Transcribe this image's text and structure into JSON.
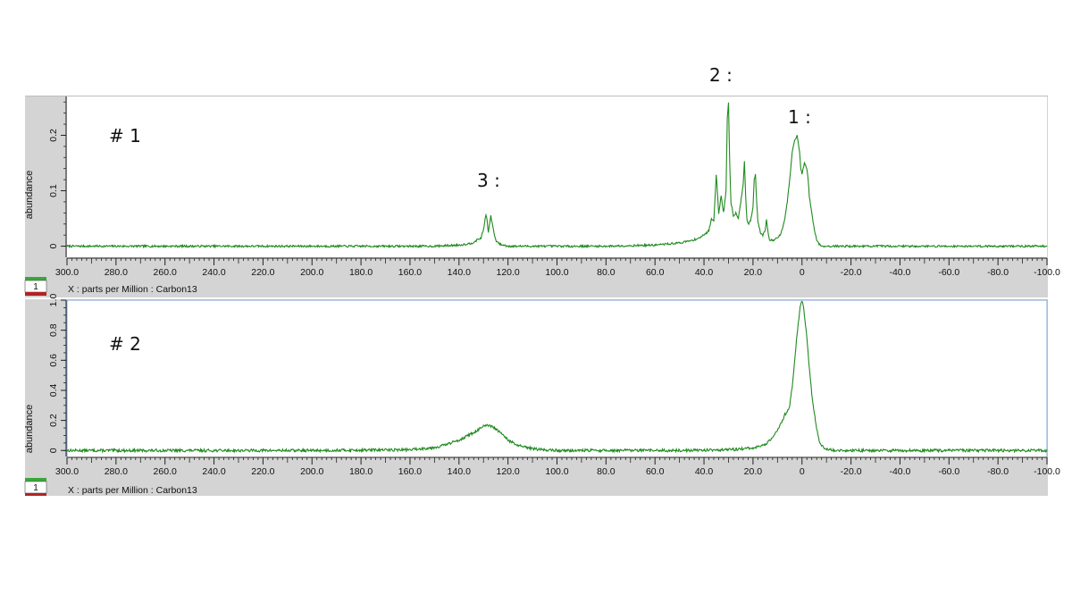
{
  "annotations": {
    "peak1": "1 :",
    "peak2": "2 :",
    "peak3": "3 :"
  },
  "status": {
    "badge": "1"
  },
  "colors": {
    "trace": "#1f8a1f",
    "panel_bg": "#d4d4d4",
    "plot_bg": "#ffffff",
    "badge_top": "#3aa63a",
    "badge_bottom": "#b22222"
  },
  "chart_data": [
    {
      "type": "line",
      "panel_label": "# 1",
      "ylabel": "abundance",
      "xlabel": "X : parts per Million : Carbon13",
      "xlim": [
        300,
        -100
      ],
      "x_reversed": true,
      "ylim": [
        -0.02,
        0.27
      ],
      "y_ticks": [
        "0",
        "0.1",
        "0.2"
      ],
      "x_ticks": [
        "300.0",
        "280.0",
        "260.0",
        "240.0",
        "220.0",
        "200.0",
        "180.0",
        "160.0",
        "140.0",
        "120.0",
        "100.0",
        "80.0",
        "60.0",
        "40.0",
        "20.0",
        "0",
        "-20.0",
        "-40.0",
        "-60.0",
        "-80.0",
        "-100.0"
      ],
      "series": [
        {
          "x": [
            300,
            200,
            150,
            140,
            135,
            131,
            130,
            129,
            128.5,
            128,
            127,
            126,
            125,
            123,
            120,
            110,
            100,
            80,
            60,
            50,
            45,
            42,
            40,
            38,
            37,
            36,
            35,
            34,
            33,
            32,
            31,
            30.5,
            30,
            29.5,
            29,
            28,
            27,
            26,
            25,
            24,
            23.5,
            23,
            22.5,
            22,
            21,
            20,
            19.5,
            19,
            18.5,
            18,
            17,
            16,
            15,
            14.5,
            14,
            13.5,
            13,
            11,
            10,
            9,
            8,
            7,
            6,
            5,
            4,
            3,
            2,
            1,
            0.5,
            0,
            -0.5,
            -1,
            -2,
            -2.5,
            -3,
            -4,
            -5,
            -6,
            -7,
            -8,
            -9,
            -10,
            -12,
            -15,
            -20,
            -40,
            -60,
            -80,
            -100
          ],
          "y": [
            0.0,
            0.0,
            0.0,
            0.002,
            0.005,
            0.015,
            0.03,
            0.058,
            0.045,
            0.025,
            0.055,
            0.03,
            0.01,
            0.003,
            0.0,
            0.0,
            0.0,
            0.0,
            0.002,
            0.006,
            0.01,
            0.015,
            0.02,
            0.028,
            0.05,
            0.045,
            0.13,
            0.06,
            0.09,
            0.06,
            0.1,
            0.23,
            0.26,
            0.15,
            0.08,
            0.055,
            0.06,
            0.05,
            0.08,
            0.11,
            0.155,
            0.09,
            0.05,
            0.04,
            0.045,
            0.07,
            0.12,
            0.13,
            0.08,
            0.045,
            0.025,
            0.02,
            0.03,
            0.05,
            0.03,
            0.015,
            0.01,
            0.012,
            0.015,
            0.02,
            0.03,
            0.05,
            0.08,
            0.12,
            0.17,
            0.19,
            0.2,
            0.17,
            0.14,
            0.13,
            0.14,
            0.15,
            0.14,
            0.12,
            0.09,
            0.06,
            0.03,
            0.012,
            0.004,
            0.0,
            0.0,
            0.0,
            0.0,
            0.0,
            0.0,
            0.0,
            0.0,
            0.0,
            0.0
          ]
        }
      ]
    },
    {
      "type": "line",
      "panel_label": "# 2",
      "ylabel": "abundance",
      "xlabel": "X : parts per Million : Carbon13",
      "xlim": [
        300,
        -100
      ],
      "x_reversed": true,
      "ylim": [
        -0.04,
        1.0
      ],
      "y_ticks": [
        "0",
        "0.2",
        "0.4",
        "0.6",
        "0.8",
        "1.0"
      ],
      "x_ticks": [
        "300.0",
        "280.0",
        "260.0",
        "240.0",
        "220.0",
        "200.0",
        "180.0",
        "160.0",
        "140.0",
        "120.0",
        "100.0",
        "80.0",
        "60.0",
        "40.0",
        "20.0",
        "0",
        "-20.0",
        "-40.0",
        "-60.0",
        "-80.0",
        "-100.0"
      ],
      "series": [
        {
          "x": [
            300,
            250,
            200,
            160,
            150,
            145,
            140,
            135,
            132,
            130,
            128,
            126,
            124,
            122,
            120,
            117,
            113,
            108,
            100,
            80,
            50,
            30,
            20,
            15,
            12,
            10,
            8,
            7,
            6,
            5,
            4,
            3,
            2,
            1,
            0.5,
            0,
            -0.5,
            -1,
            -2,
            -3,
            -4,
            -5,
            -6,
            -7,
            -8,
            -10,
            -12,
            -15,
            -20,
            -40,
            -60,
            -80,
            -100
          ],
          "y": [
            0.0,
            0.0,
            0.0,
            0.005,
            0.02,
            0.04,
            0.07,
            0.11,
            0.14,
            0.16,
            0.165,
            0.155,
            0.13,
            0.1,
            0.07,
            0.04,
            0.02,
            0.008,
            0.0,
            0.0,
            0.0,
            0.005,
            0.015,
            0.04,
            0.08,
            0.14,
            0.2,
            0.24,
            0.26,
            0.3,
            0.42,
            0.6,
            0.78,
            0.92,
            0.98,
            1.0,
            0.97,
            0.9,
            0.75,
            0.55,
            0.38,
            0.25,
            0.14,
            0.07,
            0.03,
            0.01,
            0.003,
            0.0,
            0.0,
            0.0,
            0.0,
            0.0,
            0.0
          ]
        }
      ]
    }
  ]
}
